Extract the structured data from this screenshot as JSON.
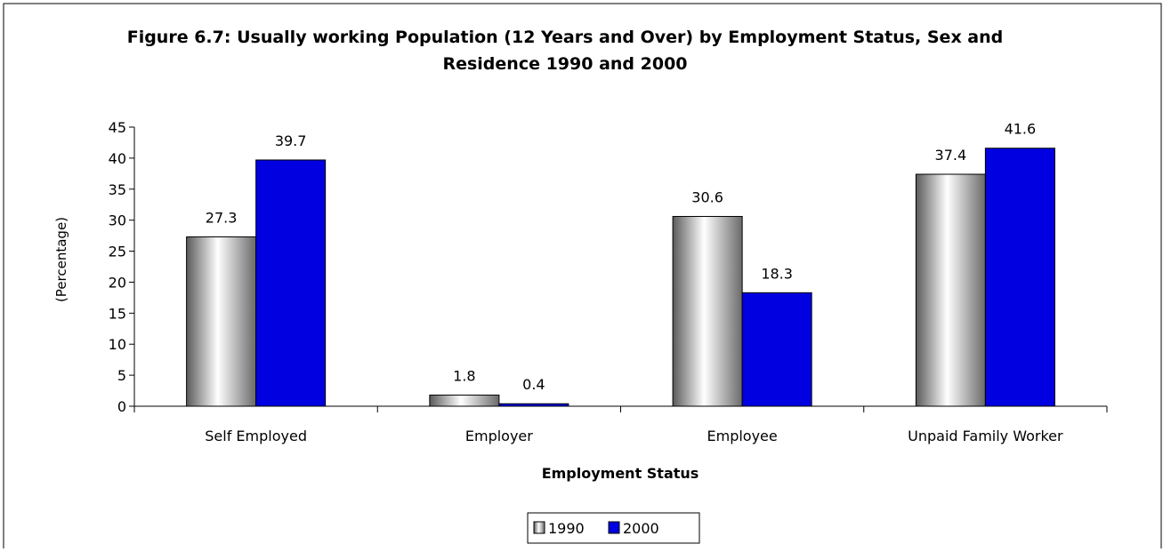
{
  "chart_data": {
    "type": "bar",
    "title_lines": [
      "Figure 6.7: Usually working Population (12 Years and Over) by Employment Status, Sex and",
      "Residence 1990 and 2000"
    ],
    "categories": [
      "Self Employed",
      "Employer",
      "Employee",
      "Unpaid Family Worker"
    ],
    "series": [
      {
        "name": "1990",
        "values": [
          27.3,
          1.8,
          30.6,
          37.4
        ],
        "color": "#c8c8c8"
      },
      {
        "name": "2000",
        "values": [
          39.7,
          0.4,
          18.3,
          41.6
        ],
        "color": "#0000e0"
      }
    ],
    "data_labels": [
      [
        "27.3",
        "1.8",
        "30.6",
        "37.4"
      ],
      [
        "39.7",
        "0.4",
        "18.3",
        "41.6"
      ]
    ],
    "xlabel": "Employment Status",
    "ylabel": "(Percentage)",
    "ylim": [
      0,
      45
    ],
    "yticks": [
      0,
      5,
      10,
      15,
      20,
      25,
      30,
      35,
      40,
      45
    ],
    "legend_position": "bottom-center",
    "grid": false
  }
}
